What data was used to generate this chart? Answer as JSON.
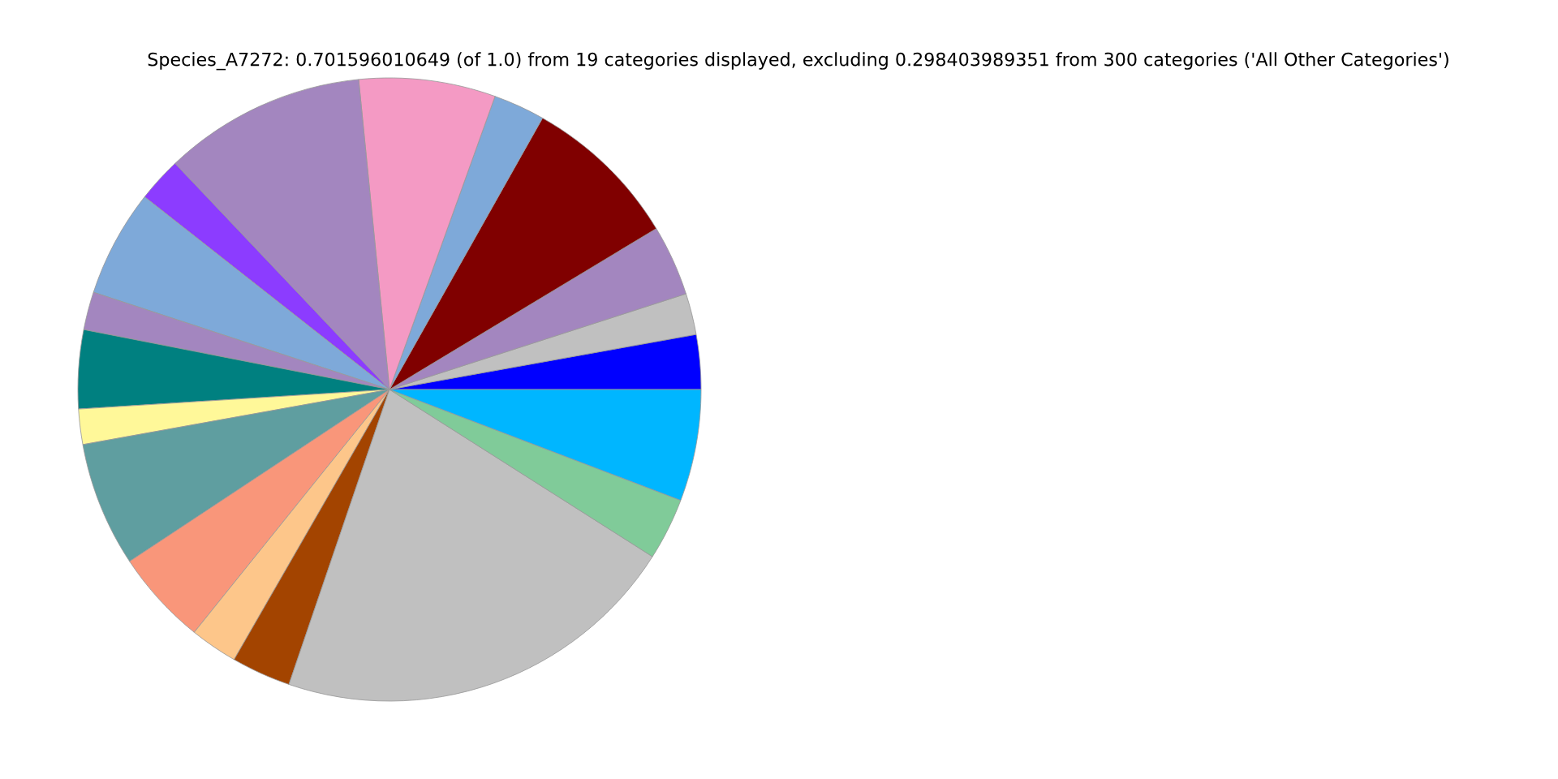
{
  "chart_data": {
    "type": "pie",
    "title": "Species_A7272: 0.701596010649 (of 1.0) from 19 categories displayed, excluding 0.298403989351 from 300 categories ('All Other Categories')",
    "categories": [
      null,
      null,
      null,
      null,
      null,
      null,
      null,
      null,
      null,
      null,
      null,
      null,
      null,
      null,
      null,
      null,
      null,
      null,
      null
    ],
    "values": [
      2.83,
      2.14,
      3.67,
      8.19,
      2.67,
      7.08,
      10.5,
      2.31,
      5.56,
      1.97,
      4.08,
      1.83,
      6.47,
      4.92,
      2.47,
      3.08,
      21.22,
      3.22,
      5.79
    ],
    "colors": [
      "#0000ff",
      "#c0c0c0",
      "#a386bf",
      "#800000",
      "#7ea9d9",
      "#f49ac4",
      "#a386bf",
      "#8c3cff",
      "#7ea9d9",
      "#a386bf",
      "#008080",
      "#fff899",
      "#5f9ea0",
      "#f9967a",
      "#fdc68a",
      "#a34400",
      "#c0c0c0",
      "#80cb99",
      "#00b6ff"
    ]
  }
}
